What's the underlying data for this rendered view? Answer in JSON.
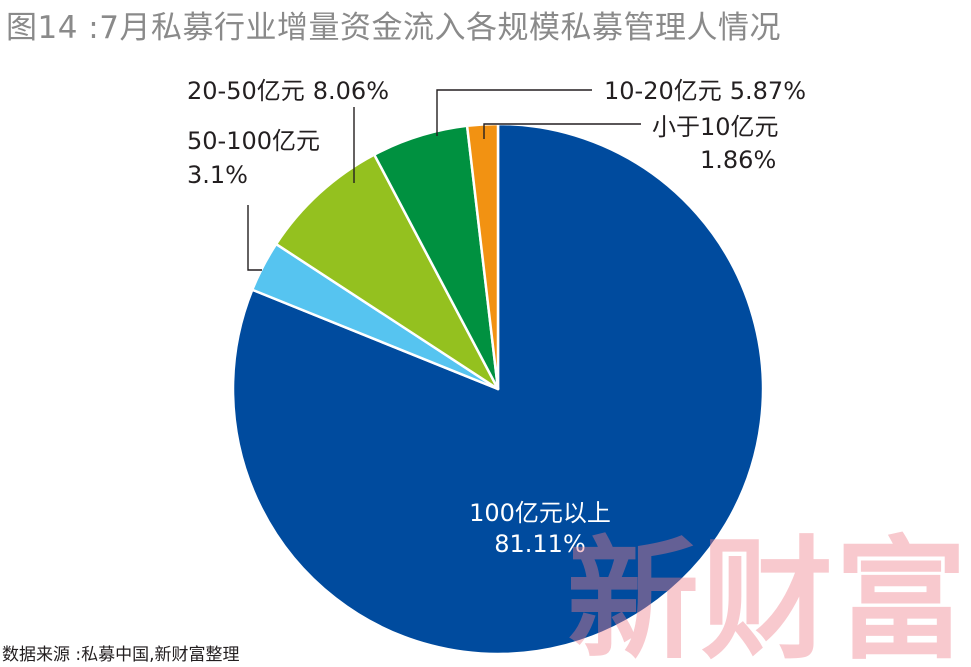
{
  "chart_data": {
    "type": "pie",
    "title": "图14 :7月私募行业增量资金流入各规模私募管理人情况",
    "source": "数据来源 :私募中国,新财富整理",
    "watermark": "新财富",
    "start_angle_deg": 0,
    "direction": "clockwise",
    "slices": [
      {
        "label": "100亿元以上",
        "value_text": "81.11%",
        "value": 81.11,
        "color": "#004b9e"
      },
      {
        "label": "50-100亿元",
        "value_text": "3.1%",
        "value": 3.1,
        "color": "#56c4f0"
      },
      {
        "label": "20-50亿元",
        "value_text": "8.06%",
        "value": 8.06,
        "color": "#94c11f"
      },
      {
        "label": "10-20亿元",
        "value_text": "5.87%",
        "value": 5.87,
        "color": "#009140"
      },
      {
        "label": "小于10亿元",
        "value_text": "1.86%",
        "value": 1.86,
        "color": "#f29212"
      }
    ]
  }
}
